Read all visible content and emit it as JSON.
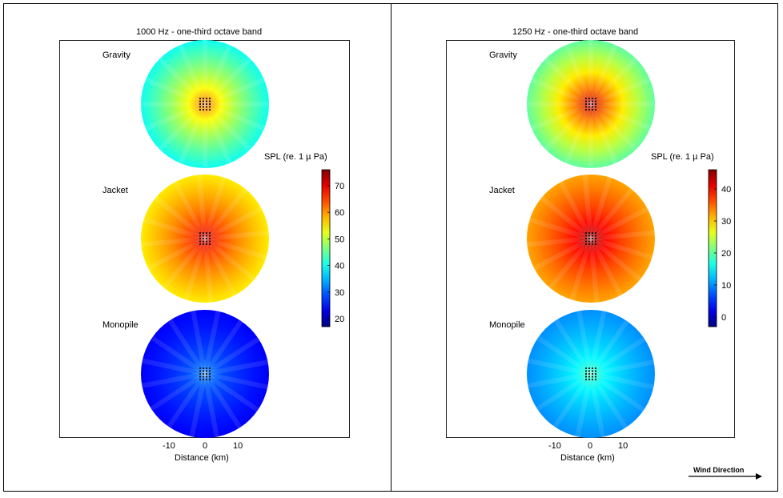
{
  "wind_label": "Wind Direction",
  "chart_data": [
    {
      "type": "heatmap",
      "title": "1000 Hz - one-third octave band",
      "xlabel": "Distance (km)",
      "xticks": [
        "-10",
        "0",
        "10"
      ],
      "colorbar": {
        "label": "SPL (re. 1 µ Pa)",
        "ticks": [
          "20",
          "30",
          "40",
          "50",
          "60",
          "70"
        ],
        "range": [
          17,
          76
        ]
      },
      "maps": [
        {
          "name": "Gravity",
          "center_spl": 62,
          "edge_spl": 40
        },
        {
          "name": "Jacket",
          "center_spl": 70,
          "edge_spl": 55
        },
        {
          "name": "Monopile",
          "center_spl": 32,
          "edge_spl": 24
        }
      ]
    },
    {
      "type": "heatmap",
      "title": "1250 Hz - one-third octave band",
      "xlabel": "Distance (km)",
      "xticks": [
        "-10",
        "0",
        "10"
      ],
      "colorbar": {
        "label": "SPL (re. 1 µ Pa)",
        "ticks": [
          "0",
          "10",
          "20",
          "30",
          "40"
        ],
        "range": [
          -3,
          46
        ]
      },
      "maps": [
        {
          "name": "Gravity",
          "center_spl": 42,
          "edge_spl": 20
        },
        {
          "name": "Jacket",
          "center_spl": 44,
          "edge_spl": 32
        },
        {
          "name": "Monopile",
          "center_spl": 18,
          "edge_spl": 10
        }
      ]
    }
  ]
}
